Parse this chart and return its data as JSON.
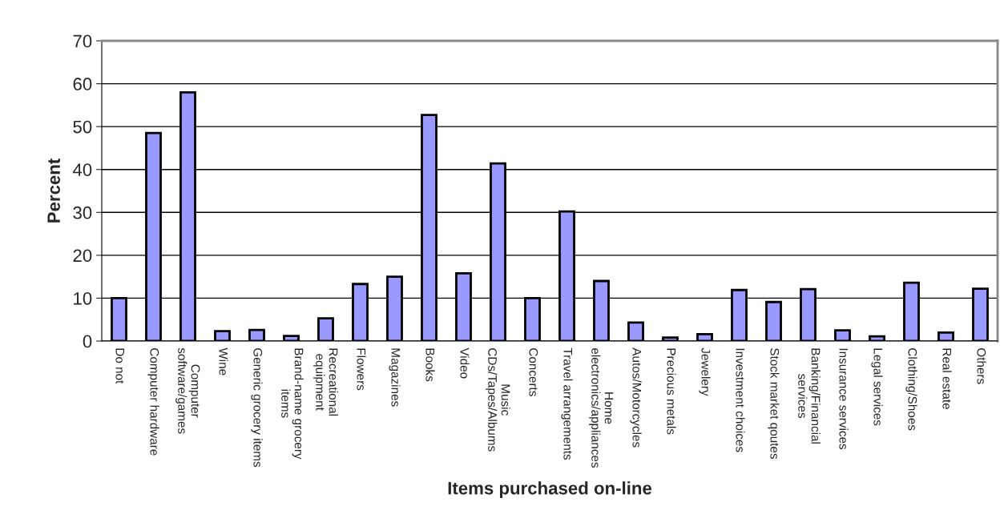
{
  "chart_data": {
    "type": "bar",
    "xlabel": "Items purchased on-line",
    "ylabel": "Percent",
    "categories": [
      "Do not",
      "Computer hardware",
      "Computer\nsoftware/games",
      "Wine",
      "Generic grocery items",
      "Brand-name grocery\nitems",
      "Recreational\nequipment",
      "Flowers",
      "Magazines",
      "Books",
      "Video",
      "Music\nCDs/Tapes/Albums",
      "Concerts",
      "Travel arrangements",
      "Home\nelectronics/appliances",
      "Autos/Motorcycles",
      "Precious metals",
      "Jewelery",
      "Investment choices",
      "Stock market qoutes",
      "Banking/Financial\nservices",
      "Insurance services",
      "Legal services",
      "Clothing/Shoes",
      "Real estate",
      "Others"
    ],
    "values": [
      10,
      48.5,
      58,
      2.3,
      2.6,
      1.2,
      5.3,
      13.3,
      15,
      52.7,
      15.8,
      41.4,
      10,
      30.2,
      14,
      4.3,
      0.8,
      1.6,
      11.9,
      9.1,
      12.1,
      2.5,
      1.1,
      13.6,
      2,
      12.2
    ],
    "color": "#9999ff",
    "ylim": [
      0,
      70
    ],
    "yticks": [
      0,
      10,
      20,
      30,
      40,
      50,
      60,
      70
    ],
    "grid": "y"
  }
}
